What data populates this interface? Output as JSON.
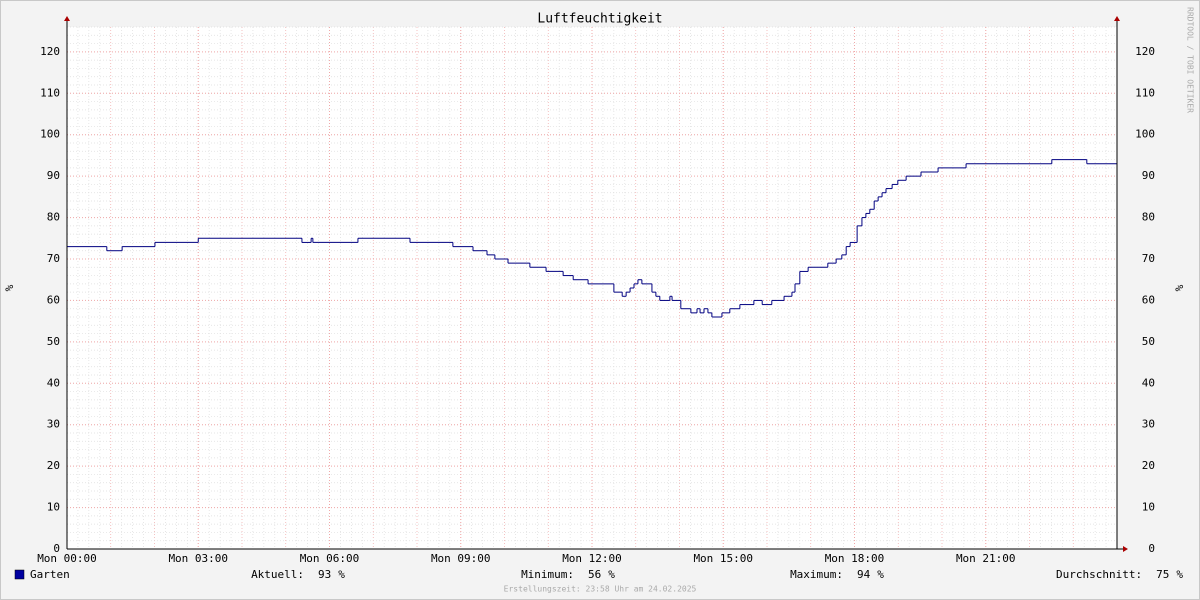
{
  "chart_data": {
    "type": "line",
    "title": "Luftfeuchtigkeit",
    "y_label": "%",
    "watermark": "RRDTOOL / TOBI OETIKER",
    "footer": "Erstellungszeit: 23:58 Uhr am 24.02.2025",
    "x": [
      0,
      0.91,
      1.26,
      2.01,
      3.0,
      5.37,
      5.58,
      5.62,
      6.65,
      7.84,
      8.82,
      9.28,
      9.6,
      9.78,
      10.08,
      10.58,
      10.95,
      11.34,
      11.57,
      11.91,
      12.5,
      12.69,
      12.78,
      12.87,
      12.96,
      13.05,
      13.14,
      13.37,
      13.46,
      13.55,
      13.78,
      13.83,
      14.03,
      14.26,
      14.4,
      14.47,
      14.56,
      14.65,
      14.74,
      14.97,
      15.15,
      15.38,
      15.7,
      15.89,
      16.11,
      16.39,
      16.57,
      16.64,
      16.75,
      16.94,
      17.39,
      17.58,
      17.71,
      17.81,
      17.9,
      18.06,
      18.17,
      18.26,
      18.35,
      18.45,
      18.54,
      18.63,
      18.72,
      18.86,
      18.99,
      19.18,
      19.52,
      19.91,
      20.55,
      22.51,
      23.31,
      24
    ],
    "series": [
      {
        "name": "Garten",
        "color": "#000080",
        "legend_color": "#0000a0",
        "values": [
          73,
          72,
          73,
          74,
          75,
          74,
          75,
          74,
          75,
          74,
          73,
          72,
          71,
          70,
          69,
          68,
          67,
          66,
          65,
          64,
          62,
          61,
          62,
          63,
          64,
          65,
          64,
          62,
          61,
          60,
          61,
          60,
          58,
          57,
          58,
          57,
          58,
          57,
          56,
          57,
          58,
          59,
          60,
          59,
          60,
          61,
          62,
          64,
          67,
          68,
          69,
          70,
          71,
          73,
          74,
          78,
          80,
          81,
          82,
          84,
          85,
          86,
          87,
          88,
          89,
          90,
          91,
          92,
          93,
          94,
          93,
          93
        ]
      }
    ],
    "xlim": [
      0,
      24
    ],
    "xticks": [
      {
        "value": 0,
        "label": "Mon 00:00"
      },
      {
        "value": 3,
        "label": "Mon 03:00"
      },
      {
        "value": 6,
        "label": "Mon 06:00"
      },
      {
        "value": 9,
        "label": "Mon 09:00"
      },
      {
        "value": 12,
        "label": "Mon 12:00"
      },
      {
        "value": 15,
        "label": "Mon 15:00"
      },
      {
        "value": 18,
        "label": "Mon 18:00"
      },
      {
        "value": 21,
        "label": "Mon 21:00"
      }
    ],
    "ylim": [
      0,
      126
    ],
    "yticks": [
      0,
      10,
      20,
      30,
      40,
      50,
      60,
      70,
      80,
      90,
      100,
      110,
      120
    ],
    "grid": true,
    "stats": [
      {
        "label": "Aktuell:",
        "value": 93,
        "unit": "%"
      },
      {
        "label": "Minimum:",
        "value": 56,
        "unit": "%"
      },
      {
        "label": "Maximum:",
        "value": 94,
        "unit": "%"
      },
      {
        "label": "Durchschnitt:",
        "value": 75,
        "unit": "%"
      }
    ]
  }
}
